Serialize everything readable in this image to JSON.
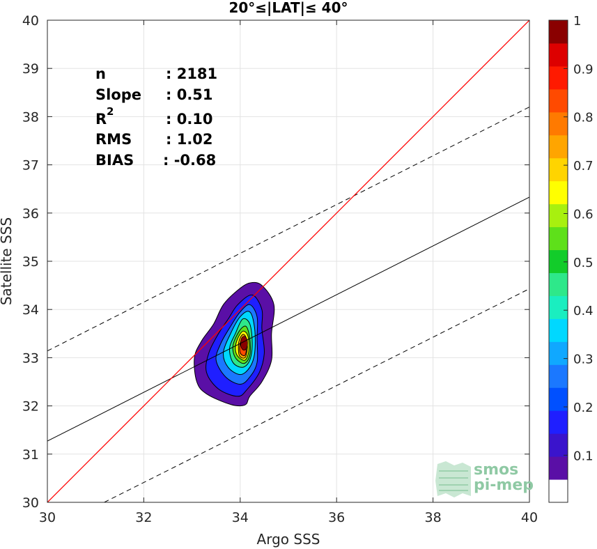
{
  "chart_data": {
    "type": "scatter",
    "title": "20°≤|LAT|≤ 40°",
    "xlabel": "Argo SSS",
    "ylabel": "Satellite SSS",
    "xlim": [
      30,
      40
    ],
    "ylim": [
      30,
      40
    ],
    "xticks": [
      "30",
      "32",
      "34",
      "36",
      "38",
      "40"
    ],
    "yticks": [
      "30",
      "31",
      "32",
      "33",
      "34",
      "35",
      "36",
      "37",
      "38",
      "39",
      "40"
    ],
    "grid": true,
    "stats": [
      {
        "label": "n",
        "value": ": 2181"
      },
      {
        "label": "Slope",
        "value": ": 0.51"
      },
      {
        "label": "R",
        "sup": "2",
        "value": ": 0.10"
      },
      {
        "label": "RMS",
        "value": ": 1.02"
      },
      {
        "label": "BIAS",
        "value": ": -0.68"
      }
    ],
    "lines": {
      "one_to_one": {
        "x": [
          30,
          40
        ],
        "y": [
          30,
          40
        ],
        "color": "#ff0000"
      },
      "regression": {
        "x": [
          30,
          40
        ],
        "y": [
          31.27,
          36.33
        ],
        "color": "#000000"
      },
      "upper_bound": {
        "x": [
          30,
          40
        ],
        "y": [
          33.14,
          38.2
        ],
        "color": "#000000",
        "style": "dashed"
      },
      "lower_bound": {
        "x": [
          31.18,
          40
        ],
        "y": [
          30,
          34.43
        ],
        "color": "#000000",
        "style": "dashed"
      }
    },
    "density_contours": {
      "center": [
        34.08,
        33.3
      ],
      "levels": [
        {
          "level": 0.05,
          "points": [
            [
              33.3,
              32.25
            ],
            [
              33.8,
              32.03
            ],
            [
              34.1,
              32.02
            ],
            [
              34.2,
              32.2
            ],
            [
              34.45,
              32.5
            ],
            [
              34.65,
              32.95
            ],
            [
              34.65,
              33.5
            ],
            [
              34.7,
              34.1
            ],
            [
              34.45,
              34.5
            ],
            [
              34.2,
              34.55
            ],
            [
              33.95,
              34.4
            ],
            [
              33.65,
              34.1
            ],
            [
              33.45,
              33.7
            ],
            [
              33.2,
              33.35
            ],
            [
              33.05,
              33.0
            ],
            [
              33.1,
              32.5
            ]
          ]
        },
        {
          "level": 0.15,
          "points": [
            [
              33.55,
              32.35
            ],
            [
              33.95,
              32.2
            ],
            [
              34.15,
              32.35
            ],
            [
              34.4,
              32.7
            ],
            [
              34.5,
              33.1
            ],
            [
              34.45,
              33.6
            ],
            [
              34.45,
              34.0
            ],
            [
              34.25,
              34.3
            ],
            [
              33.95,
              34.1
            ],
            [
              33.75,
              33.8
            ],
            [
              33.55,
              33.5
            ],
            [
              33.35,
              33.1
            ],
            [
              33.3,
              32.7
            ]
          ]
        },
        {
          "level": 0.25,
          "points": [
            [
              33.7,
              32.6
            ],
            [
              34.0,
              32.45
            ],
            [
              34.2,
              32.6
            ],
            [
              34.35,
              32.9
            ],
            [
              34.35,
              33.4
            ],
            [
              34.35,
              33.85
            ],
            [
              34.2,
              34.1
            ],
            [
              34.0,
              33.95
            ],
            [
              33.8,
              33.65
            ],
            [
              33.6,
              33.3
            ],
            [
              33.5,
              32.95
            ]
          ]
        },
        {
          "level": 0.35,
          "points": [
            [
              33.75,
              32.8
            ],
            [
              34.0,
              32.65
            ],
            [
              34.2,
              32.8
            ],
            [
              34.3,
              33.1
            ],
            [
              34.3,
              33.6
            ],
            [
              34.2,
              33.95
            ],
            [
              34.0,
              33.85
            ],
            [
              33.8,
              33.5
            ],
            [
              33.65,
              33.1
            ]
          ]
        },
        {
          "level": 0.45,
          "points": [
            [
              33.85,
              32.9
            ],
            [
              34.05,
              32.8
            ],
            [
              34.2,
              32.95
            ],
            [
              34.25,
              33.3
            ],
            [
              34.2,
              33.7
            ],
            [
              34.05,
              33.8
            ],
            [
              33.9,
              33.5
            ],
            [
              33.78,
              33.2
            ]
          ]
        },
        {
          "level": 0.55,
          "points": [
            [
              33.9,
              33.0
            ],
            [
              34.08,
              32.88
            ],
            [
              34.2,
              33.05
            ],
            [
              34.2,
              33.4
            ],
            [
              34.12,
              33.65
            ],
            [
              33.98,
              33.55
            ],
            [
              33.85,
              33.25
            ]
          ]
        },
        {
          "level": 0.65,
          "points": [
            [
              33.95,
              33.03
            ],
            [
              34.1,
              32.95
            ],
            [
              34.18,
              33.15
            ],
            [
              34.16,
              33.45
            ],
            [
              34.06,
              33.55
            ],
            [
              33.95,
              33.4
            ],
            [
              33.9,
              33.2
            ]
          ]
        },
        {
          "level": 0.75,
          "points": [
            [
              33.98,
              33.05
            ],
            [
              34.1,
              33.0
            ],
            [
              34.15,
              33.2
            ],
            [
              34.12,
              33.42
            ],
            [
              34.05,
              33.48
            ],
            [
              33.97,
              33.32
            ]
          ]
        },
        {
          "level": 0.85,
          "points": [
            [
              34.0,
              33.1
            ],
            [
              34.1,
              33.05
            ],
            [
              34.13,
              33.25
            ],
            [
              34.08,
              33.4
            ],
            [
              34.0,
              33.3
            ]
          ]
        }
      ]
    },
    "colorbar": {
      "ticks": [
        "0.1",
        "0.2",
        "0.3",
        "0.4",
        "0.5",
        "0.6",
        "0.7",
        "0.8",
        "0.9",
        "1"
      ],
      "colors": [
        "#ffffff",
        "#5a0fa6",
        "#3a14cc",
        "#1f1fff",
        "#0050ff",
        "#1b78ff",
        "#10a8ff",
        "#00d8ff",
        "#1aeec0",
        "#2ee88a",
        "#12cc2a",
        "#5ee01a",
        "#a8f00f",
        "#ffff00",
        "#ffd400",
        "#ffa500",
        "#ff7a00",
        "#ff4a00",
        "#ff1a00",
        "#dd0000",
        "#8a0000"
      ]
    },
    "logo": {
      "line1": "smos",
      "line2": "pi-mep"
    }
  }
}
